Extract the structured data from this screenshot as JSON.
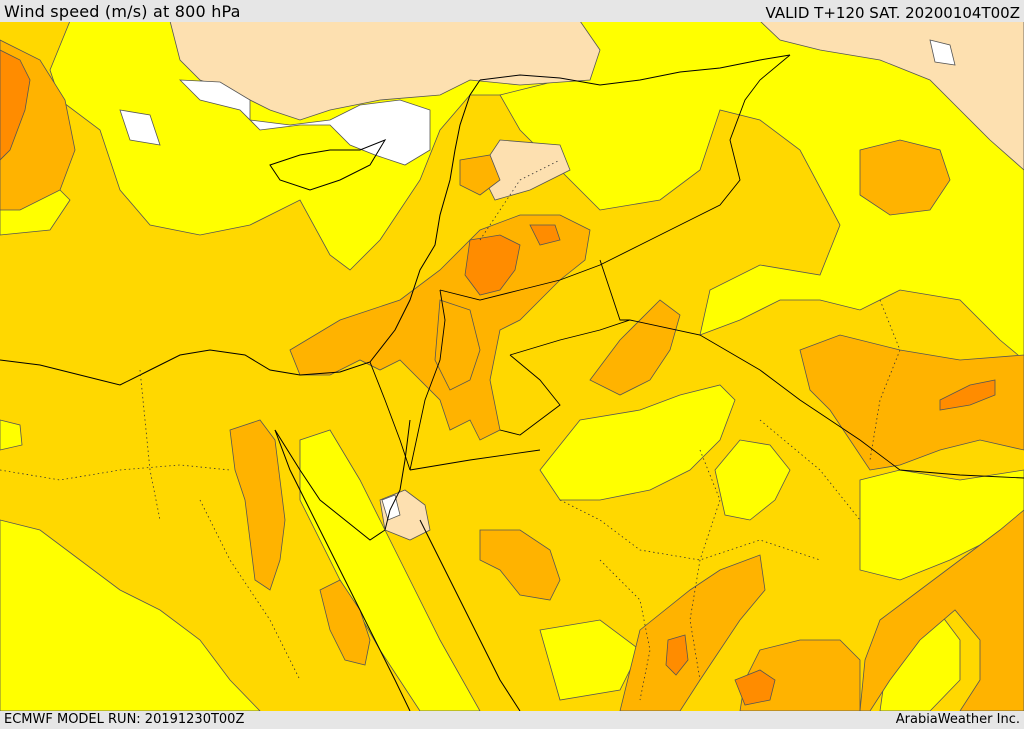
{
  "header": {
    "title": "Wind speed (m/s) at 800 hPa",
    "valid": "VALID T+120 SAT. 20200104T00Z"
  },
  "footer": {
    "model_run": "ECMWF MODEL RUN: 20191230T00Z",
    "credit": "ArabiaWeather Inc."
  },
  "map": {
    "colors": {
      "calm": "#ffffff",
      "very_light": "#fde0b0",
      "light": "#ffff00",
      "moderate": "#ffd800",
      "strong": "#ffb300",
      "very_strong": "#ff8c00",
      "contour": "#555555",
      "border": "#000000"
    }
  }
}
